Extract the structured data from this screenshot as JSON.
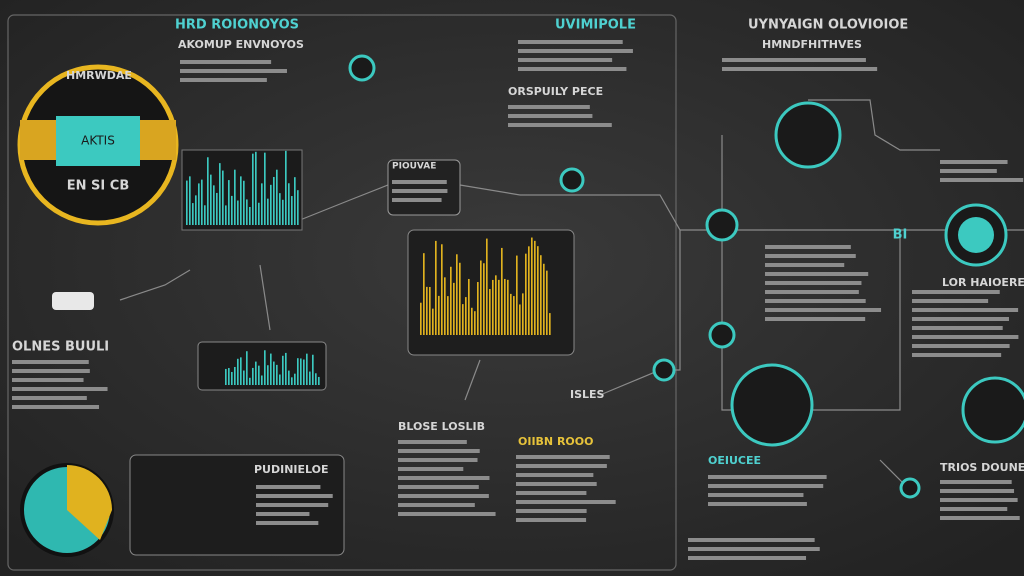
{
  "header": {
    "title": "HRD ROIONOYOS",
    "subtitle": "AKOMUP ENVNOYOS",
    "center_title": "UVIMIPOLE",
    "right_title": "UYNYAIGN OLOVIOIOE",
    "right_subtitle": "HMNDFHITHVES"
  },
  "panels": {
    "gauge_label": "HMRWDAE",
    "gauge_button": "AKTIS",
    "gauge_footer": "EN SI CB",
    "quality": "ORSPUILY PECE",
    "left_notes": "OLNES BUULI",
    "process": "PIOUVAE",
    "chart_caption": "BLOSE LOSLIB",
    "chart_notes": "OIIBN ROOO",
    "dashboard": "PUDINIELOE",
    "node_label": "ISLES",
    "side_node": "BI",
    "right_block": "LOR HAIOERE",
    "bottom_center": "OEIUCEE",
    "bottom_right": "TRIOS DOUNE"
  }
}
